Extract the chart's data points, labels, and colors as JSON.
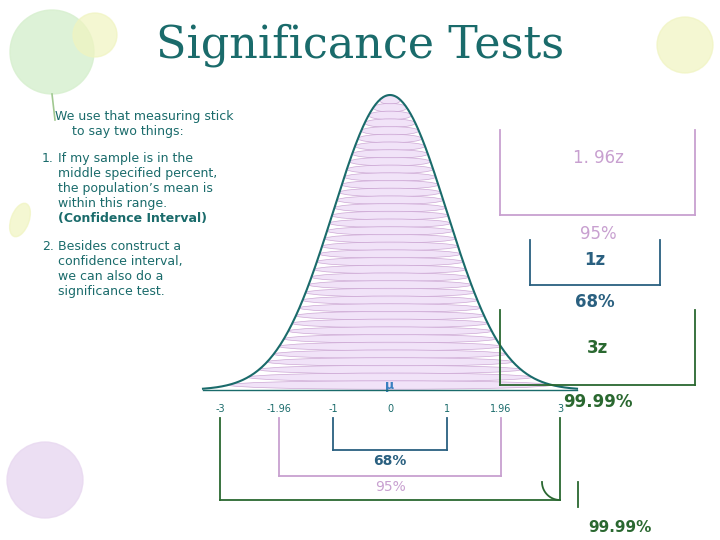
{
  "title": "Significance Tests",
  "title_color": "#1a6b6b",
  "title_fontsize": 32,
  "bg_color": "#ffffff",
  "text_color": "#1a6b6b",
  "bracket_color_purple": "#c8a0d0",
  "bracket_color_teal": "#2a6080",
  "bracket_color_green": "#2a6830",
  "label_196z": "1. 96z",
  "label_95pct_right": "95%",
  "label_1z": "1z",
  "label_68pct_right": "68%",
  "label_3z": "3z",
  "label_9999pct_right": "99.99%",
  "label_68pct_bottom": "68%",
  "label_95pct_bottom": "95%",
  "label_9999pct_bottom": "99.99%",
  "axis_labels": [
    "-3",
    "-1.96",
    "-1",
    "0",
    "1",
    "1.96",
    "3"
  ],
  "mu_label": "μ",
  "balloon_color_green": "#d8f0d0",
  "balloon_color_yellow": "#f0f4c0",
  "balloon_color_purple": "#e8d8f0",
  "normal_curve_color": "#1a6b6b",
  "ellipse_face": "#f0e0f8",
  "ellipse_edge": "#c8a0d0",
  "text_font": "DejaVu Sans",
  "title_font": "DejaVu Serif"
}
